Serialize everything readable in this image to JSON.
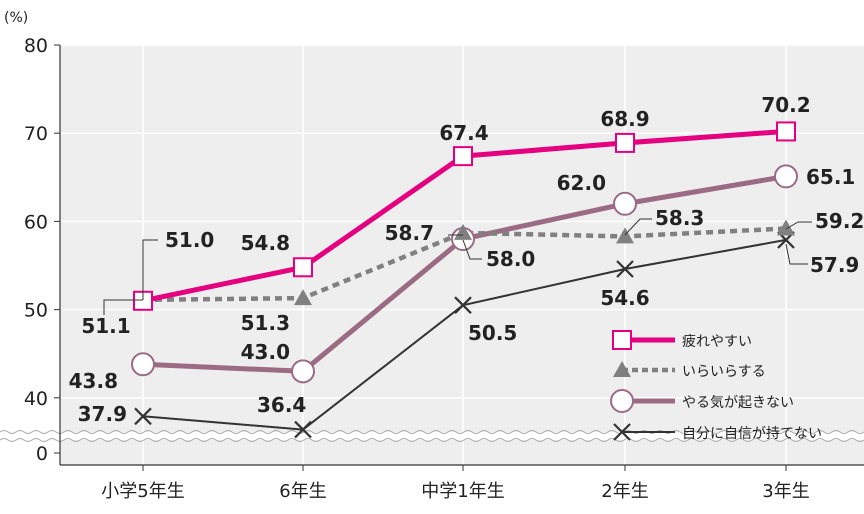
{
  "chart_data": {
    "type": "line",
    "unit_label": "(%)",
    "categories": [
      "小学5年生",
      "6年生",
      "中学1年生",
      "2年生",
      "3年生"
    ],
    "y_ticks": [
      "80",
      "70",
      "60",
      "50",
      "40",
      "0"
    ],
    "ylim": [
      0,
      80
    ],
    "axis_break": "between 0 and 40",
    "grid": true,
    "legend_position": "bottom-right",
    "series": [
      {
        "name": "疲れやすい",
        "values": [
          51.0,
          54.8,
          67.4,
          68.9,
          70.2
        ],
        "labels": [
          "51.0",
          "54.8",
          "67.4",
          "68.9",
          "70.2"
        ],
        "color": "#e4007f",
        "marker": "square",
        "line": "solid-thick"
      },
      {
        "name": "いらいらする",
        "values": [
          51.1,
          51.3,
          58.7,
          58.3,
          59.2
        ],
        "labels": [
          "51.1",
          "51.3",
          "58.7",
          "58.3",
          "59.2"
        ],
        "color": "#808080",
        "marker": "triangle",
        "line": "dashed"
      },
      {
        "name": "やる気が起きない",
        "values": [
          43.8,
          43.0,
          58.0,
          62.0,
          65.1
        ],
        "labels": [
          "43.8",
          "43.0",
          "58.0",
          "62.0",
          "65.1"
        ],
        "color": "#9b6b84",
        "marker": "circle",
        "line": "solid-thick"
      },
      {
        "name": "自分に自信が持てない",
        "values": [
          37.9,
          36.4,
          50.5,
          54.6,
          57.9
        ],
        "labels": [
          "37.9",
          "36.4",
          "50.5",
          "54.6",
          "57.9"
        ],
        "color": "#333333",
        "marker": "x",
        "line": "solid-thin"
      }
    ]
  }
}
